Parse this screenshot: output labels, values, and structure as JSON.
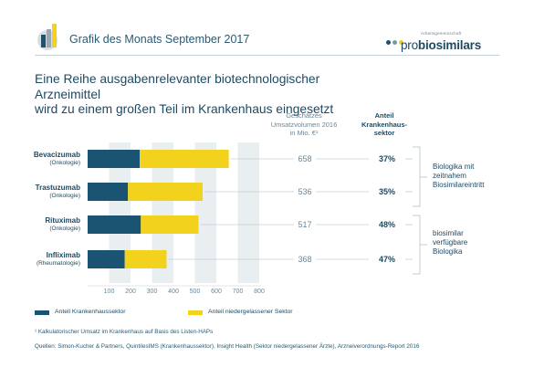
{
  "header": {
    "title": "Grafik des Monats September 2017",
    "brand_small": "Arbeitsgemeinschaft",
    "brand_prefix": "pro",
    "brand_main": "biosimilars"
  },
  "headline": {
    "line1": "Eine Reihe ausgabenrelevanter biotechnologischer Arzneimittel",
    "line2": "wird zu einem großen Teil im Krankenhaus eingesetzt"
  },
  "columns": {
    "volume": [
      "Geschätzes",
      "Umsatzvolumen 2016",
      "in Mio. €¹"
    ],
    "share": [
      "Anteil",
      "Krankenhaus-",
      "sektor"
    ]
  },
  "chart_data": {
    "type": "bar",
    "orientation": "horizontal",
    "stacked": true,
    "categories": [
      "Bevacizumab",
      "Trastuzumab",
      "Rituximab",
      "Infliximab"
    ],
    "category_notes": [
      "(Onkologie)",
      "(Onkologie)",
      "(Onkologie)",
      "(Rheumatologie)"
    ],
    "series": [
      {
        "name": "Anteil Krankenhaussektor",
        "values": [
          243,
          188,
          248,
          173
        ],
        "color": "#1a5472"
      },
      {
        "name": "Anteil niedergelassener Sektor",
        "values": [
          415,
          348,
          269,
          195
        ],
        "color": "#f2d21c"
      }
    ],
    "totals": [
      658,
      536,
      517,
      368
    ],
    "hospital_share": [
      "37%",
      "35%",
      "48%",
      "47%"
    ],
    "xlim": [
      0,
      800
    ],
    "xticks": [
      100,
      200,
      300,
      400,
      500,
      600,
      700,
      800
    ],
    "grid": "alternating bands",
    "legend_position": "bottom-left"
  },
  "groups": [
    {
      "lines": [
        "Biologika mit",
        "zeitnahem",
        "Biosimilareintritt"
      ]
    },
    {
      "lines": [
        "biosimilar",
        "verfügbare",
        "Biologika"
      ]
    }
  ],
  "footnotes": {
    "note": "¹ Kalkulatorischer Umsatz im Krankenhaus auf Basis des Listen-HAPs",
    "source": "Quellen: Simon-Kucher & Partners, QuintilesIMS (Krankenhaussektor), Insight Health (Sektor niedergelassener Ärzte), Arzneiverordnungs-Report 2016"
  },
  "colors": {
    "hospital": "#1a5472",
    "outpatient": "#f2d21c",
    "band": "#e9eef1",
    "text": "#1d4a63"
  }
}
